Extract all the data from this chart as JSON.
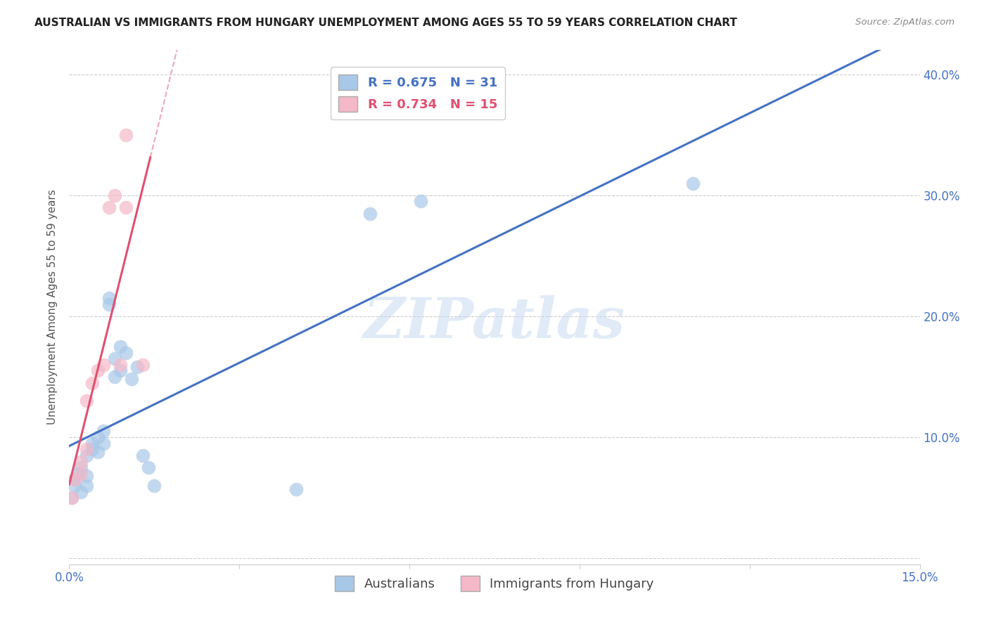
{
  "title": "AUSTRALIAN VS IMMIGRANTS FROM HUNGARY UNEMPLOYMENT AMONG AGES 55 TO 59 YEARS CORRELATION CHART",
  "source": "Source: ZipAtlas.com",
  "ylabel": "Unemployment Among Ages 55 to 59 years",
  "xlim": [
    0.0,
    0.15
  ],
  "ylim": [
    -0.005,
    0.42
  ],
  "xticks": [
    0.0,
    0.03,
    0.06,
    0.09,
    0.12,
    0.15
  ],
  "xtick_labels": [
    "0.0%",
    "",
    "",
    "",
    "",
    "15.0%"
  ],
  "yticks": [
    0.0,
    0.1,
    0.2,
    0.3,
    0.4
  ],
  "ytick_labels_right": [
    "",
    "10.0%",
    "20.0%",
    "30.0%",
    "40.0%"
  ],
  "watermark": "ZIPatlas",
  "aus_x": [
    0.0005,
    0.001,
    0.001,
    0.0015,
    0.002,
    0.002,
    0.003,
    0.003,
    0.003,
    0.004,
    0.004,
    0.005,
    0.005,
    0.006,
    0.006,
    0.007,
    0.007,
    0.008,
    0.008,
    0.009,
    0.009,
    0.01,
    0.011,
    0.012,
    0.013,
    0.014,
    0.015,
    0.04,
    0.053,
    0.062,
    0.11
  ],
  "aus_y": [
    0.05,
    0.06,
    0.065,
    0.07,
    0.055,
    0.075,
    0.06,
    0.068,
    0.085,
    0.09,
    0.095,
    0.088,
    0.1,
    0.095,
    0.105,
    0.21,
    0.215,
    0.15,
    0.165,
    0.155,
    0.175,
    0.17,
    0.148,
    0.158,
    0.085,
    0.075,
    0.06,
    0.057,
    0.285,
    0.295,
    0.31
  ],
  "hun_x": [
    0.0005,
    0.001,
    0.002,
    0.002,
    0.003,
    0.003,
    0.004,
    0.005,
    0.006,
    0.007,
    0.008,
    0.009,
    0.01,
    0.01,
    0.013
  ],
  "hun_y": [
    0.05,
    0.065,
    0.07,
    0.08,
    0.09,
    0.13,
    0.145,
    0.155,
    0.16,
    0.29,
    0.3,
    0.16,
    0.35,
    0.29,
    0.16
  ],
  "aus_color": "#A8C8E8",
  "hun_color": "#F4B8C8",
  "aus_line_color": "#4472C4",
  "hun_line_color": "#E05070",
  "aus_R": 0.675,
  "aus_N": 31,
  "hun_R": 0.734,
  "hun_N": 15,
  "legend_aus_label": "Australians",
  "legend_hun_label": "Immigrants from Hungary",
  "grid_color": "#CCCCCC",
  "background_color": "#FFFFFF",
  "title_color": "#222222",
  "source_color": "#888888",
  "tick_color": "#4472C4"
}
